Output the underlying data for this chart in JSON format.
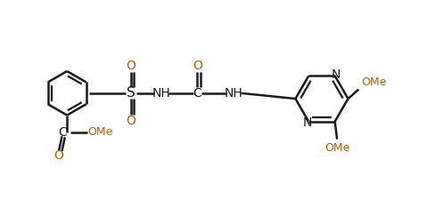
{
  "bg_color": "#ffffff",
  "line_color": "#1a1a1a",
  "orange_color": "#b85c00",
  "bond_lw": 1.8,
  "figsize": [
    4.79,
    2.43
  ],
  "dpi": 100,
  "xlim": [
    0,
    10
  ],
  "ylim": [
    0,
    5
  ]
}
